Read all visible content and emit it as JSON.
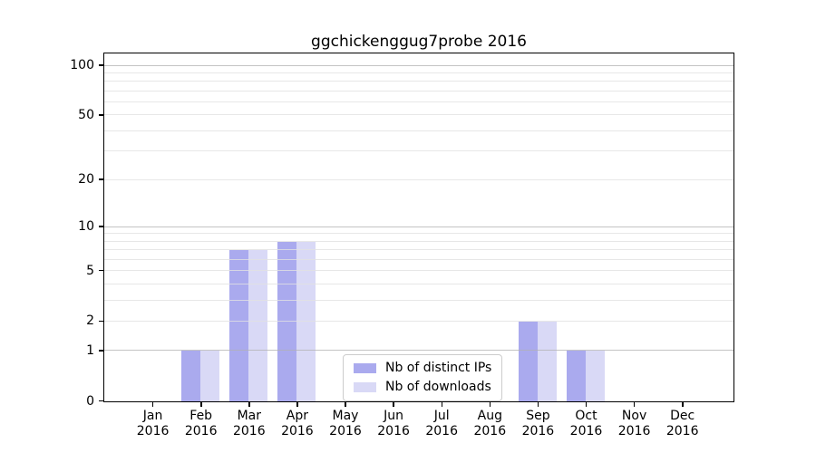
{
  "chart_data": {
    "type": "bar",
    "title": "ggchickenggug7probe 2016",
    "categories": [
      "Jan",
      "Feb",
      "Mar",
      "Apr",
      "May",
      "Jun",
      "Jul",
      "Aug",
      "Sep",
      "Oct",
      "Nov",
      "Dec"
    ],
    "x_year": "2016",
    "series": [
      {
        "name": "Nb of distinct IPs",
        "color": "#aaaaee",
        "values": [
          0,
          1,
          7,
          8,
          0,
          0,
          0,
          0,
          2,
          1,
          0,
          0
        ]
      },
      {
        "name": "Nb of downloads",
        "color": "#d9d9f6",
        "values": [
          0,
          1,
          7,
          8,
          0,
          0,
          0,
          0,
          2,
          1,
          0,
          0
        ]
      }
    ],
    "y_scale": "log1p",
    "ylim": [
      0,
      117
    ],
    "y_ticks": [
      0,
      1,
      2,
      5,
      10,
      20,
      50,
      100
    ],
    "y_major_gridlines": [
      1,
      10,
      100
    ],
    "y_minor_gridlines": [
      2,
      3,
      4,
      5,
      6,
      7,
      8,
      9,
      20,
      30,
      40,
      50,
      60,
      70,
      80,
      90
    ],
    "grid": true,
    "legend_position": "lower center",
    "colors": {
      "spine": "#000000",
      "major_grid": "#b0b0b0",
      "minor_grid": "#e1e1e1",
      "background": "#ffffff"
    }
  }
}
